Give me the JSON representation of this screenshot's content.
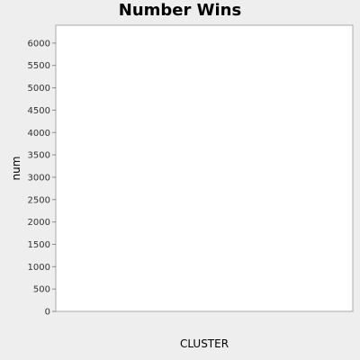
{
  "chart_data": {
    "type": "bar",
    "title": "Number Wins",
    "xlabel": "CLUSTER",
    "ylabel": "num",
    "ylim": [
      0,
      6400
    ],
    "yticks": [
      0,
      500,
      1000,
      1500,
      2000,
      2500,
      3000,
      3500,
      4000,
      4500,
      5000,
      5500,
      6000
    ],
    "grid": false,
    "legend": "none",
    "categories": [],
    "values": []
  }
}
